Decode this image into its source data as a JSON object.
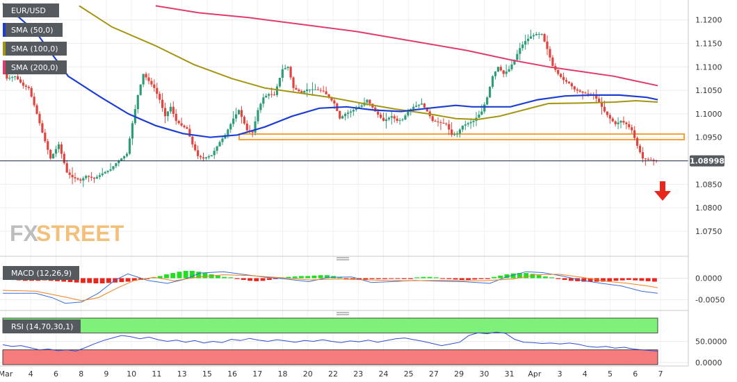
{
  "chart_data": {
    "type": "candlestick",
    "symbol": "EUR/USD",
    "colors": {
      "up": "#2e9c76",
      "down": "#e0443f",
      "sma50": "#1d3fd1",
      "sma100": "#a39511",
      "sma200": "#e03b6b",
      "zone": "#f5a033",
      "arrow": "#e8261d",
      "price_tag": "#555a5e",
      "macd_up": "#22dd22",
      "macd_down": "#e8261d",
      "macd_line": "#3a6bd8",
      "signal_line": "#f07f1e",
      "rsi_line": "#2f4bd0",
      "rsi_overbought": "#7ff07a",
      "rsi_oversold": "#f47c7c"
    },
    "legend": [
      {
        "label": "EUR/USD",
        "swatch": "#555a5e"
      },
      {
        "label": "SMA (50,0)",
        "swatch": "#1d3fd1"
      },
      {
        "label": "SMA (100,0)",
        "swatch": "#a39511"
      },
      {
        "label": "SMA (200,0)",
        "swatch": "#e03b6b"
      }
    ],
    "price_axis": {
      "ticks": [
        "1.1200",
        "1.1150",
        "1.1100",
        "1.1050",
        "1.1000",
        "1.0950",
        "1.0900",
        "1.0850",
        "1.0800",
        "1.0750"
      ],
      "ylim": [
        1.071,
        1.1235
      ]
    },
    "last_price": "1.08998",
    "x_labels": [
      "Mar",
      "4",
      "6",
      "8",
      "9",
      "10",
      "11",
      "13",
      "15",
      "16",
      "17",
      "18",
      "20",
      "22",
      "23",
      "24",
      "25",
      "27",
      "29",
      "30",
      "31",
      "Apr",
      "3",
      "4",
      "5",
      "6",
      "7"
    ],
    "resistance_zone": {
      "low": 1.0945,
      "high": 1.0957
    },
    "price_path": [
      [
        0,
        1.1095
      ],
      [
        2,
        1.1075
      ],
      [
        5,
        1.108
      ],
      [
        8,
        1.106
      ],
      [
        10,
        1.1055
      ],
      [
        13,
        1.1
      ],
      [
        15,
        1.096
      ],
      [
        18,
        1.0905
      ],
      [
        21,
        1.0935
      ],
      [
        24,
        1.0875
      ],
      [
        26,
        1.0865
      ],
      [
        29,
        1.0858
      ],
      [
        31,
        1.0868
      ],
      [
        34,
        1.0862
      ],
      [
        37,
        1.0873
      ],
      [
        40,
        1.0882
      ],
      [
        42,
        1.0895
      ],
      [
        44,
        1.0905
      ],
      [
        46,
        1.0915
      ],
      [
        48,
        1.098
      ],
      [
        50,
        1.104
      ],
      [
        52,
        1.1085
      ],
      [
        54,
        1.107
      ],
      [
        56,
        1.1055
      ],
      [
        58,
        1.103
      ],
      [
        60,
        1.0995
      ],
      [
        62,
        1.1015
      ],
      [
        64,
        1.0985
      ],
      [
        66,
        1.0975
      ],
      [
        68,
        1.0968
      ],
      [
        70,
        1.0935
      ],
      [
        72,
        1.091
      ],
      [
        74,
        1.0905
      ],
      [
        77,
        1.0912
      ],
      [
        80,
        1.094
      ],
      [
        82,
        1.0955
      ],
      [
        85,
        1.099
      ],
      [
        87,
        1.1008
      ],
      [
        90,
        1.0965
      ],
      [
        92,
        1.096
      ],
      [
        94,
        1.1008
      ],
      [
        96,
        1.1035
      ],
      [
        98,
        1.1042
      ],
      [
        100,
        1.104
      ],
      [
        103,
        1.1095
      ],
      [
        105,
        1.11
      ],
      [
        107,
        1.1055
      ],
      [
        110,
        1.1045
      ],
      [
        112,
        1.1052
      ],
      [
        115,
        1.1052
      ],
      [
        118,
        1.1048
      ],
      [
        120,
        1.1035
      ],
      [
        122,
        1.1022
      ],
      [
        124,
        1.099
      ],
      [
        126,
        1.1
      ],
      [
        128,
        1.1005
      ],
      [
        130,
        1.1012
      ],
      [
        132,
        1.1018
      ],
      [
        134,
        1.103
      ],
      [
        137,
        1.1005
      ],
      [
        140,
        1.0985
      ],
      [
        143,
        1.0995
      ],
      [
        145,
        1.0985
      ],
      [
        147,
        1.0988
      ],
      [
        149,
        1.1005
      ],
      [
        151,
        1.1015
      ],
      [
        154,
        1.1022
      ],
      [
        156,
        1.1005
      ],
      [
        158,
        1.0985
      ],
      [
        160,
        1.0982
      ],
      [
        163,
        1.0978
      ],
      [
        165,
        1.0955
      ],
      [
        167,
        1.0958
      ],
      [
        169,
        1.0975
      ],
      [
        171,
        1.098
      ],
      [
        173,
        1.0985
      ],
      [
        176,
        1.1005
      ],
      [
        178,
        1.1035
      ],
      [
        180,
        1.108
      ],
      [
        182,
        1.11
      ],
      [
        184,
        1.1085
      ],
      [
        186,
        1.1095
      ],
      [
        188,
        1.1115
      ],
      [
        190,
        1.114
      ],
      [
        192,
        1.1155
      ],
      [
        194,
        1.1165
      ],
      [
        196,
        1.117
      ],
      [
        198,
        1.117
      ],
      [
        200,
        1.1138
      ],
      [
        202,
        1.1102
      ],
      [
        204,
        1.1085
      ],
      [
        206,
        1.1072
      ],
      [
        208,
        1.1065
      ],
      [
        210,
        1.1052
      ],
      [
        213,
        1.1045
      ],
      [
        215,
        1.1042
      ],
      [
        217,
        1.104
      ],
      [
        219,
        1.1025
      ],
      [
        221,
        1.1005
      ],
      [
        223,
        1.099
      ],
      [
        225,
        1.0978
      ],
      [
        227,
        1.0985
      ],
      [
        229,
        1.0978
      ],
      [
        231,
        1.0965
      ],
      [
        233,
        1.0932
      ],
      [
        235,
        1.0905
      ],
      [
        237,
        1.0903
      ],
      [
        240,
        1.09
      ]
    ],
    "sma50_path": [
      [
        0,
        1.1235
      ],
      [
        12,
        1.1175
      ],
      [
        24,
        1.108
      ],
      [
        36,
        1.1035
      ],
      [
        46,
        1.1
      ],
      [
        56,
        1.0975
      ],
      [
        66,
        1.0958
      ],
      [
        76,
        1.095
      ],
      [
        86,
        1.0955
      ],
      [
        96,
        1.0972
      ],
      [
        106,
        1.0995
      ],
      [
        116,
        1.1012
      ],
      [
        126,
        1.1015
      ],
      [
        136,
        1.1008
      ],
      [
        146,
        1.1005
      ],
      [
        156,
        1.1012
      ],
      [
        166,
        1.1018
      ],
      [
        172,
        1.1015
      ],
      [
        182,
        1.1015
      ],
      [
        186,
        1.1015
      ],
      [
        196,
        1.103
      ],
      [
        206,
        1.1038
      ],
      [
        216,
        1.104
      ],
      [
        226,
        1.104
      ],
      [
        236,
        1.1035
      ],
      [
        240,
        1.103
      ]
    ],
    "sma100_path": [
      [
        28,
        1.123
      ],
      [
        40,
        1.1185
      ],
      [
        56,
        1.1145
      ],
      [
        70,
        1.1105
      ],
      [
        84,
        1.1075
      ],
      [
        96,
        1.1055
      ],
      [
        108,
        1.1045
      ],
      [
        120,
        1.1035
      ],
      [
        132,
        1.1022
      ],
      [
        144,
        1.101
      ],
      [
        156,
        1.1
      ],
      [
        166,
        1.099
      ],
      [
        174,
        1.0988
      ],
      [
        182,
        1.0995
      ],
      [
        192,
        1.101
      ],
      [
        200,
        1.1022
      ],
      [
        212,
        1.1023
      ],
      [
        224,
        1.1025
      ],
      [
        232,
        1.1028
      ],
      [
        240,
        1.1025
      ]
    ],
    "sma200_path": [
      [
        56,
        1.123
      ],
      [
        72,
        1.1215
      ],
      [
        90,
        1.1205
      ],
      [
        110,
        1.119
      ],
      [
        130,
        1.1175
      ],
      [
        150,
        1.1155
      ],
      [
        170,
        1.1135
      ],
      [
        186,
        1.1115
      ],
      [
        200,
        1.11
      ],
      [
        212,
        1.109
      ],
      [
        224,
        1.108
      ],
      [
        232,
        1.107
      ],
      [
        240,
        1.106
      ]
    ],
    "macd": {
      "label": "MACD (12,26,9)",
      "ticks": [
        "0.0000",
        "-0.0050"
      ],
      "ylim": [
        -0.0073,
        0.0033
      ],
      "histogram": [
        -0.0003,
        -0.0004,
        -0.0005,
        -0.0006,
        -0.0006,
        -0.0006,
        -0.0005,
        -0.0006,
        -0.0007,
        -0.0008,
        -0.0009,
        -0.001,
        -0.0011,
        -0.0011,
        -0.0012,
        -0.0012,
        -0.0011,
        -0.001,
        -0.0009,
        -0.0008,
        -0.0006,
        -0.0004,
        -0.0002,
        0.0002,
        0.0005,
        0.0009,
        0.0012,
        0.0015,
        0.0017,
        0.0017,
        0.0015,
        0.0012,
        0.0009,
        0.0006,
        0.0003,
        0.0002,
        -0.0002,
        -0.0004,
        -0.0006,
        -0.0007,
        -0.0006,
        -0.0004,
        -0.0002,
        0.0002,
        0.0003,
        0.0004,
        0.0005,
        0.0005,
        0.0006,
        0.0007,
        0.0007,
        0.0005,
        0.0002,
        -0.0001,
        -0.0002,
        -0.0003,
        -0.0003,
        -0.0002,
        -0.0002,
        -0.0002,
        -0.0001,
        -0.0001,
        -0.0002,
        -0.0002,
        0.0002,
        0.0003,
        0.0003,
        0.0002,
        -0.0001,
        -0.0002,
        -0.0003,
        -0.0004,
        -0.0004,
        -0.0003,
        -0.0002,
        -0.0002,
        0.0003,
        0.0006,
        0.0009,
        0.0011,
        0.0012,
        0.0012,
        0.001,
        0.0007,
        0.0004,
        0.0002,
        -0.0002,
        -0.0004,
        -0.0006,
        -0.0007,
        -0.0008,
        -0.0008,
        -0.0008,
        -0.0008,
        -0.0007,
        -0.0006,
        -0.0005,
        -0.0004,
        -0.0005,
        -0.0006,
        -0.0007,
        -0.0008
      ],
      "macd_line": [
        [
          0,
          -0.0035
        ],
        [
          20,
          -0.0035
        ],
        [
          30,
          -0.0045
        ],
        [
          38,
          -0.0058
        ],
        [
          48,
          -0.0055
        ],
        [
          58,
          -0.0035
        ],
        [
          68,
          -0.0005
        ],
        [
          76,
          0.001
        ],
        [
          88,
          -0.0005
        ],
        [
          100,
          -0.0012
        ],
        [
          110,
          -0.0003
        ],
        [
          120,
          0.0012
        ],
        [
          134,
          0.0015
        ],
        [
          148,
          0.0008
        ],
        [
          160,
          0.0002
        ],
        [
          172,
          -0.0002
        ],
        [
          186,
          -0.0008
        ],
        [
          198,
          0.0002
        ],
        [
          212,
          0.0003
        ],
        [
          224,
          -0.001
        ],
        [
          236,
          -0.0008
        ],
        [
          250,
          -0.0005
        ],
        [
          266,
          -0.0007
        ],
        [
          280,
          -0.0008
        ],
        [
          296,
          -0.0012
        ],
        [
          306,
          0.0003
        ],
        [
          318,
          0.0015
        ],
        [
          328,
          0.0013
        ],
        [
          340,
          0.0005
        ],
        [
          352,
          -0.0005
        ],
        [
          364,
          -0.0012
        ],
        [
          376,
          -0.0018
        ],
        [
          388,
          -0.003
        ],
        [
          398,
          -0.0035
        ]
      ],
      "signal_line": [
        [
          0,
          -0.0028
        ],
        [
          20,
          -0.003
        ],
        [
          36,
          -0.0042
        ],
        [
          48,
          -0.0052
        ],
        [
          58,
          -0.0045
        ],
        [
          70,
          -0.0022
        ],
        [
          80,
          -0.0005
        ],
        [
          92,
          0.0002
        ],
        [
          104,
          -0.0006
        ],
        [
          118,
          0.0002
        ],
        [
          134,
          0.0008
        ],
        [
          150,
          0.0006
        ],
        [
          166,
          0.0002
        ],
        [
          186,
          -0.0004
        ],
        [
          204,
          -0.0002
        ],
        [
          222,
          -0.0004
        ],
        [
          244,
          -0.0006
        ],
        [
          270,
          -0.0005
        ],
        [
          292,
          -0.0006
        ],
        [
          310,
          -0.0002
        ],
        [
          324,
          0.0008
        ],
        [
          338,
          0.0009
        ],
        [
          352,
          0.0002
        ],
        [
          366,
          -0.0007
        ],
        [
          380,
          -0.0012
        ],
        [
          392,
          -0.0018
        ],
        [
          398,
          -0.0022
        ]
      ]
    },
    "rsi": {
      "label": "RSI (14,70,30,1)",
      "ticks": [
        "50.0000",
        "0.0000"
      ],
      "ylim": [
        -5,
        105
      ],
      "overbought": 70,
      "oversold": 30,
      "line": [
        [
          0,
          42
        ],
        [
          6,
          38
        ],
        [
          12,
          40
        ],
        [
          18,
          35
        ],
        [
          24,
          30
        ],
        [
          30,
          32
        ],
        [
          36,
          28
        ],
        [
          42,
          30
        ],
        [
          48,
          27
        ],
        [
          54,
          35
        ],
        [
          60,
          44
        ],
        [
          66,
          52
        ],
        [
          72,
          58
        ],
        [
          78,
          64
        ],
        [
          84,
          61
        ],
        [
          90,
          56
        ],
        [
          96,
          60
        ],
        [
          102,
          54
        ],
        [
          108,
          50
        ],
        [
          114,
          53
        ],
        [
          120,
          48
        ],
        [
          126,
          52
        ],
        [
          132,
          46
        ],
        [
          138,
          50
        ],
        [
          144,
          47
        ],
        [
          150,
          55
        ],
        [
          156,
          52
        ],
        [
          162,
          57
        ],
        [
          168,
          53
        ],
        [
          174,
          50
        ],
        [
          180,
          54
        ],
        [
          186,
          51
        ],
        [
          192,
          48
        ],
        [
          198,
          52
        ],
        [
          204,
          50
        ],
        [
          210,
          54
        ],
        [
          216,
          50
        ],
        [
          222,
          47
        ],
        [
          228,
          51
        ],
        [
          234,
          49
        ],
        [
          240,
          53
        ],
        [
          246,
          48
        ],
        [
          252,
          52
        ],
        [
          258,
          56
        ],
        [
          264,
          58
        ],
        [
          270,
          54
        ],
        [
          276,
          50
        ],
        [
          282,
          45
        ],
        [
          288,
          40
        ],
        [
          294,
          44
        ],
        [
          300,
          48
        ],
        [
          306,
          64
        ],
        [
          312,
          70
        ],
        [
          318,
          68
        ],
        [
          324,
          72
        ],
        [
          330,
          69
        ],
        [
          336,
          55
        ],
        [
          342,
          48
        ],
        [
          348,
          47
        ],
        [
          354,
          45
        ],
        [
          360,
          46
        ],
        [
          366,
          44
        ],
        [
          372,
          46
        ],
        [
          378,
          43
        ],
        [
          384,
          38
        ],
        [
          390,
          36
        ],
        [
          396,
          38
        ],
        [
          402,
          34
        ],
        [
          408,
          36
        ],
        [
          414,
          32
        ],
        [
          420,
          30
        ],
        [
          426,
          28
        ],
        [
          430,
          27
        ]
      ]
    },
    "watermark": {
      "part1": "FX",
      "part2": "STREET"
    }
  }
}
